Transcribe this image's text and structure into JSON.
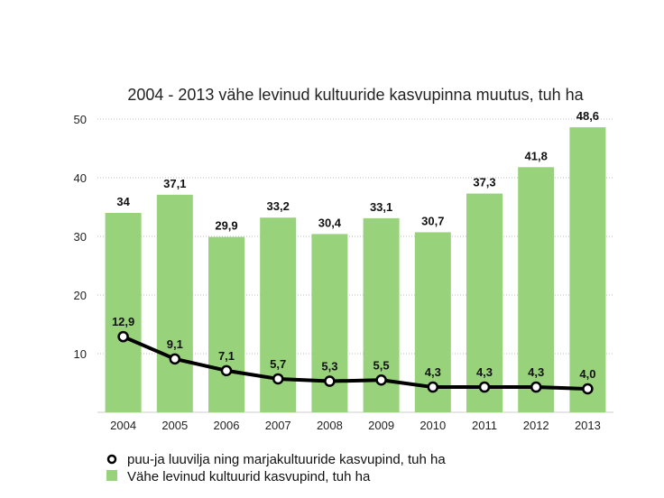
{
  "chart_data": {
    "type": "bar+line",
    "title": "2004 - 2013 vähe levinud kultuuride kasvupinna muutus, tuh ha",
    "categories": [
      "2004",
      "2005",
      "2006",
      "2007",
      "2008",
      "2009",
      "2010",
      "2011",
      "2012",
      "2013"
    ],
    "series": [
      {
        "name": "Vähe levinud kultuurid kasvupind, tuh ha",
        "type": "bar",
        "color": "#98d27a",
        "values": [
          34,
          37.1,
          29.9,
          33.2,
          30.4,
          33.1,
          30.7,
          37.3,
          41.8,
          48.6
        ],
        "labels": [
          "34",
          "37,1",
          "29,9",
          "33,2",
          "30,4",
          "33,1",
          "30,7",
          "37,3",
          "41,8",
          "48,6"
        ]
      },
      {
        "name": "puu-ja luuvilja ning marjakultuuride kasvupind, tuh ha",
        "type": "line",
        "color": "#000000",
        "values": [
          12.9,
          9.1,
          7.1,
          5.7,
          5.3,
          5.5,
          4.3,
          4.3,
          4.3,
          4.0
        ],
        "labels": [
          "12,9",
          "9,1",
          "7,1",
          "5,7",
          "5,3",
          "5,5",
          "4,3",
          "4,3",
          "4,3",
          "4,0"
        ]
      }
    ],
    "ylim": [
      0,
      50
    ],
    "yticks": [
      "10",
      "20",
      "30",
      "40",
      "50"
    ],
    "grid": true,
    "legend": "bottom-left"
  }
}
